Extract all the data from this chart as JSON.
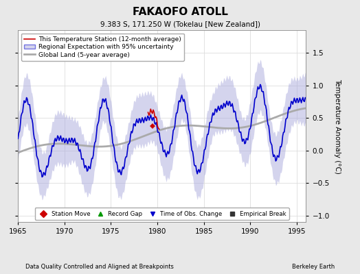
{
  "title": "FAKAOFO ATOLL",
  "subtitle": "9.383 S, 171.250 W (Tokelau [New Zealand])",
  "xlabel_left": "Data Quality Controlled and Aligned at Breakpoints",
  "xlabel_right": "Berkeley Earth",
  "ylabel": "Temperature Anomaly (°C)",
  "xlim": [
    1965,
    1996
  ],
  "ylim": [
    -1.1,
    1.85
  ],
  "yticks": [
    -1,
    -0.5,
    0,
    0.5,
    1,
    1.5
  ],
  "xticks": [
    1965,
    1970,
    1975,
    1980,
    1985,
    1990,
    1995
  ],
  "bg_color": "#e8e8e8",
  "plot_bg_color": "#ffffff",
  "legend_line_entries": [
    {
      "label": "This Temperature Station (12-month average)",
      "color": "#cc0000",
      "lw": 1.2
    },
    {
      "label": "Regional Expectation with 95% uncertainty",
      "color": "#0000cc",
      "lw": 1.2
    },
    {
      "label": "Global Land (5-year average)",
      "color": "#aaaaaa",
      "lw": 2.0
    }
  ],
  "shade_color": "#aaaadd",
  "shade_alpha": 0.5,
  "grid_color": "#dddddd",
  "marker_legend": [
    {
      "label": "Station Move",
      "marker": "D",
      "color": "#cc0000"
    },
    {
      "label": "Record Gap",
      "marker": "^",
      "color": "#009900"
    },
    {
      "label": "Time of Obs. Change",
      "marker": "v",
      "color": "#0000cc"
    },
    {
      "label": "Empirical Break",
      "marker": "s",
      "color": "#333333"
    }
  ],
  "station_move_x": 1979.5,
  "station_move_y": 0.38
}
